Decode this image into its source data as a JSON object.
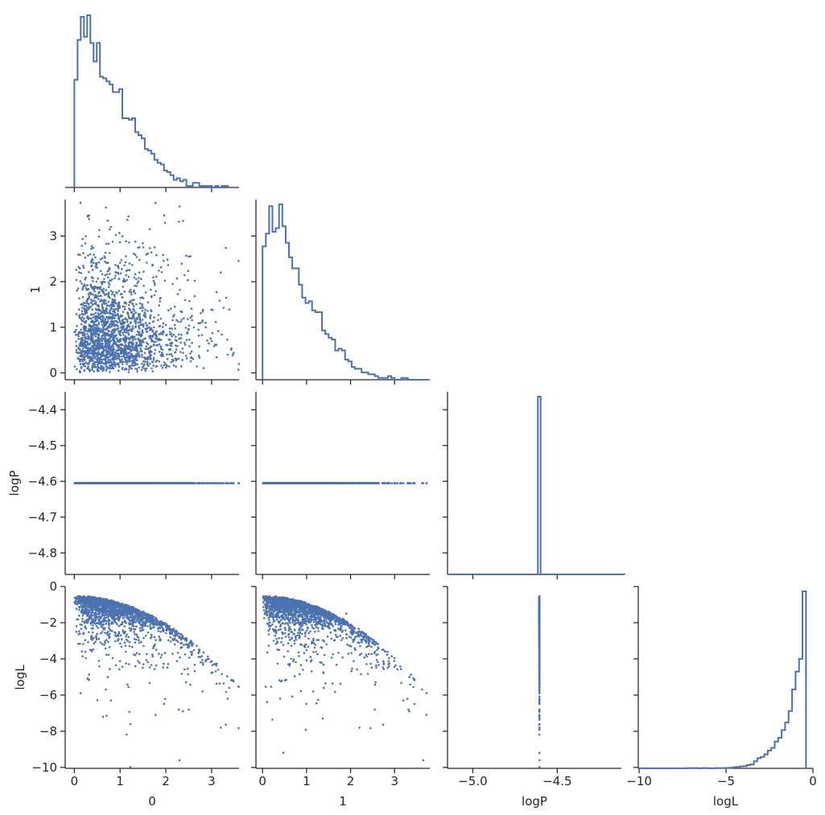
{
  "chart_data": {
    "type": "corner_plot",
    "variables": [
      "0",
      "1",
      "logP",
      "logL"
    ],
    "color": "#4c72b0",
    "diagonal": [
      {
        "variable": "0",
        "type": "histogram_step",
        "bin_edges": [
          0.0,
          0.07,
          0.14,
          0.21,
          0.28,
          0.35,
          0.42,
          0.49,
          0.56,
          0.63,
          0.7,
          0.77,
          0.84,
          0.91,
          0.98,
          1.05,
          1.12,
          1.19,
          1.26,
          1.33,
          1.4,
          1.47,
          1.54,
          1.61,
          1.68,
          1.75,
          1.82,
          1.89,
          1.96,
          2.03,
          2.1,
          2.17,
          2.24,
          2.31,
          2.38,
          2.45,
          2.52,
          2.59,
          2.66,
          2.73,
          2.8,
          2.87,
          2.94,
          3.01,
          3.08,
          3.15,
          3.22,
          3.29,
          3.36
        ],
        "counts": [
          70,
          96,
          111,
          98,
          112,
          94,
          82,
          94,
          72,
          71,
          69,
          67,
          62,
          62,
          64,
          45,
          45,
          44,
          45,
          36,
          34,
          32,
          25,
          24,
          22,
          18,
          16,
          15,
          11,
          10,
          8,
          5,
          6,
          4,
          5,
          1,
          1,
          3,
          3,
          1,
          1,
          1,
          1,
          0,
          1,
          0,
          1,
          1
        ]
      },
      {
        "variable": "1",
        "type": "histogram_step",
        "bin_edges": [
          0.0,
          0.075,
          0.15,
          0.225,
          0.3,
          0.375,
          0.45,
          0.525,
          0.6,
          0.675,
          0.75,
          0.825,
          0.9,
          0.975,
          1.05,
          1.125,
          1.2,
          1.275,
          1.35,
          1.425,
          1.5,
          1.575,
          1.65,
          1.725,
          1.8,
          1.875,
          1.95,
          2.025,
          2.1,
          2.175,
          2.25,
          2.325,
          2.4,
          2.475,
          2.55,
          2.625,
          2.7,
          2.775,
          2.85,
          2.925,
          3.0,
          3.075,
          3.15,
          3.225,
          3.3,
          3.375,
          3.45,
          3.525,
          3.6,
          3.675
        ],
        "counts": [
          73,
          80,
          95,
          81,
          83,
          96,
          84,
          75,
          67,
          61,
          61,
          52,
          45,
          42,
          43,
          38,
          37,
          37,
          27,
          25,
          23,
          22,
          16,
          17,
          16,
          11,
          10,
          7,
          6,
          6,
          4,
          4,
          3,
          3,
          2,
          1,
          1,
          1,
          2,
          1,
          0,
          0,
          1,
          1,
          0,
          0,
          0,
          0,
          0
        ]
      },
      {
        "variable": "logP",
        "type": "histogram_step",
        "bin_edges": [
          -5.15,
          -4.6145,
          -4.5985,
          -4.1
        ],
        "counts": [
          1,
          2000,
          1
        ]
      },
      {
        "variable": "logL",
        "type": "histogram_step",
        "bin_edges": [
          -10.0,
          -9.8,
          -9.6,
          -9.4,
          -9.2,
          -9.0,
          -8.8,
          -8.6,
          -8.4,
          -8.2,
          -8.0,
          -7.8,
          -7.6,
          -7.4,
          -7.2,
          -7.0,
          -6.8,
          -6.6,
          -6.4,
          -6.2,
          -6.0,
          -5.8,
          -5.6,
          -5.4,
          -5.2,
          -5.0,
          -4.8,
          -4.6,
          -4.4,
          -4.2,
          -4.0,
          -3.8,
          -3.6,
          -3.4,
          -3.2,
          -3.0,
          -2.8,
          -2.6,
          -2.4,
          -2.2,
          -2.0,
          -1.8,
          -1.6,
          -1.4,
          -1.2,
          -1.0,
          -0.8,
          -0.6,
          -0.4
        ],
        "counts": [
          1,
          1,
          1,
          1,
          1,
          1,
          1,
          1,
          1,
          1,
          1,
          1,
          1,
          1,
          2,
          2,
          2,
          1,
          2,
          2,
          1,
          1,
          2,
          2,
          2,
          3,
          5,
          9,
          11,
          15,
          17,
          25,
          31,
          55,
          80,
          90,
          110,
          140,
          160,
          210,
          240,
          300,
          360,
          450,
          620,
          760,
          860,
          1390
        ]
      }
    ],
    "scatter_samples": {
      "x0": [
        0.05,
        0.12,
        0.2,
        0.28,
        0.35,
        0.45,
        0.55,
        0.65,
        0.8,
        0.95,
        1.1,
        1.3,
        1.55,
        1.8,
        2.1,
        2.3,
        2.5,
        2.8,
        3.2,
        3.35
      ],
      "x1": [
        0.45,
        0.3,
        1.9,
        0.1,
        2.6,
        0.7,
        1.2,
        0.2,
        3.2,
        0.5,
        0.9,
        1.6,
        0.3,
        0.8,
        0.6,
        3.65,
        2.55,
        1.15,
        2.2,
        0.4
      ],
      "logL": [
        -0.6,
        -0.7,
        -1.5,
        -0.65,
        -3.5,
        -0.9,
        -1.3,
        -0.7,
        -6.3,
        -1.0,
        -1.2,
        -2.2,
        -1.6,
        -2.0,
        -2.8,
        -9.6,
        -6.8,
        -5.8,
        -7.8,
        -6.2
      ]
    },
    "constant_logP": -4.6052,
    "axes": {
      "0": {
        "label": "0",
        "range": [
          -0.2,
          3.6
        ],
        "ticks": [
          "0",
          "1",
          "2",
          "3"
        ],
        "tick_values": [
          0,
          1,
          2,
          3
        ]
      },
      "1": {
        "label": "1",
        "range": [
          -0.15,
          3.8
        ],
        "ticks": [
          "0",
          "1",
          "2",
          "3"
        ],
        "tick_values": [
          0,
          1,
          2,
          3
        ]
      },
      "logP": {
        "label": "logP",
        "range": [
          -4.86,
          -4.35
        ],
        "xrange": [
          -5.15,
          -4.12
        ],
        "xticks": [
          "−5.0",
          "−4.5"
        ],
        "xtick_values": [
          -5.0,
          -4.5
        ],
        "yticks": [
          "−4.4",
          "−4.5",
          "−4.6",
          "−4.7",
          "−4.8"
        ],
        "ytick_values": [
          -4.4,
          -4.5,
          -4.6,
          -4.7,
          -4.8
        ]
      },
      "logL": {
        "label": "logL",
        "range": [
          -10.05,
          0.0
        ],
        "xticks": [
          "−10",
          "−5",
          "0"
        ],
        "xtick_values": [
          -10,
          -5,
          0
        ],
        "yticks": [
          "0",
          "−2",
          "−4",
          "−6",
          "−8",
          "−10"
        ],
        "ytick_values": [
          0,
          -2,
          -4,
          -6,
          -8,
          -10
        ]
      }
    }
  }
}
